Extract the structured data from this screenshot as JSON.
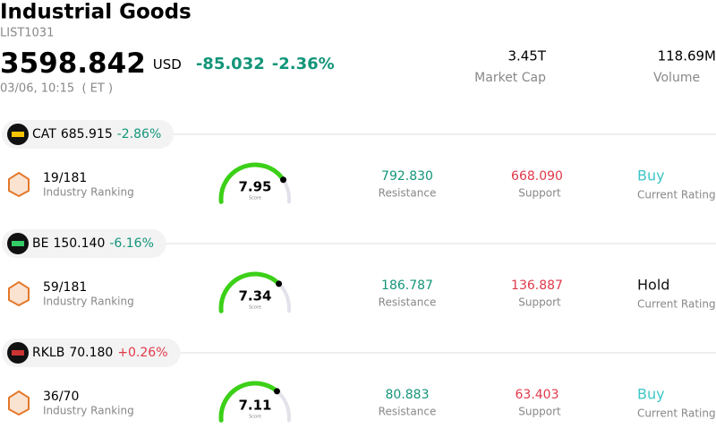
{
  "header": {
    "title": "Industrial Goods",
    "code": "LIST1031",
    "price": "3598.842",
    "currency": "USD",
    "change": "-85.032",
    "change_pct": "-2.36%",
    "change_color": "#13957a",
    "time": "03/06, 10:15  ( ET )",
    "market_cap": "3.45T",
    "market_cap_label": "Market Cap",
    "volume": "118.69M",
    "volume_label": "Volume"
  },
  "stocks": [
    {
      "ticker": "CAT",
      "price": "685.915",
      "change_pct": "-2.86%",
      "change_color": "#13957a",
      "ranking": "19/181",
      "ranking_label": "Industry Ranking",
      "score": 7.95,
      "score_label": "Score",
      "resistance": "792.830",
      "resistance_label": "Resistance",
      "support": "668.090",
      "support_label": "Support",
      "rating": "Buy",
      "rating_label": "Current Rating",
      "rating_color": "#3ec6c6"
    },
    {
      "ticker": "BE",
      "price": "150.140",
      "change_pct": "-6.16%",
      "change_color": "#13957a",
      "ranking": "59/181",
      "ranking_label": "Industry Ranking",
      "score": 7.34,
      "score_label": "Score",
      "resistance": "186.787",
      "resistance_label": "Resistance",
      "support": "136.887",
      "support_label": "Support",
      "rating": "Hold",
      "rating_label": "Current Rating",
      "rating_color": "#111111"
    },
    {
      "ticker": "RKLB",
      "price": "70.180",
      "change_pct": "+0.26%",
      "change_color": "#e0394a",
      "ranking": "36/70",
      "ranking_label": "Industry Ranking",
      "score": 7.11,
      "score_label": "Score",
      "resistance": "80.883",
      "resistance_label": "Resistance",
      "support": "63.403",
      "support_label": "Support",
      "rating": "Buy",
      "rating_label": "Current Rating",
      "rating_color": "#3ec6c6"
    }
  ]
}
